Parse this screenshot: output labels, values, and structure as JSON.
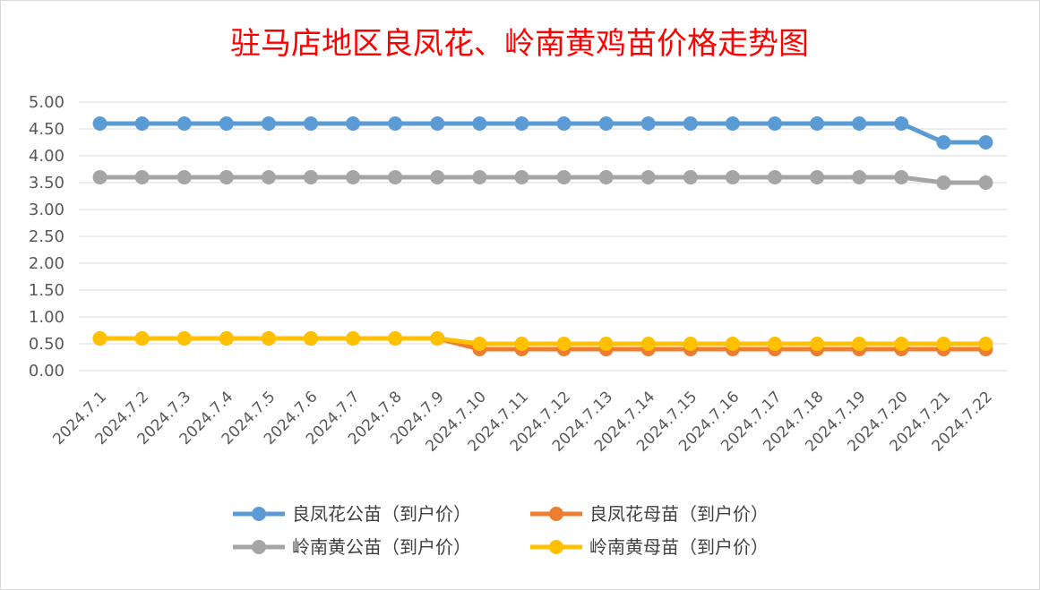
{
  "chart_data": {
    "type": "line",
    "title": "驻马店地区良凤花、岭南黄鸡苗价格走势图",
    "xlabel": "",
    "ylabel": "",
    "ylim": [
      0,
      5
    ],
    "yticks": [
      "0.00",
      "0.50",
      "1.00",
      "1.50",
      "2.00",
      "2.50",
      "3.00",
      "3.50",
      "4.00",
      "4.50",
      "5.00"
    ],
    "grid": true,
    "legend_position": "bottom",
    "categories": [
      "2024.7.1",
      "2024.7.2",
      "2024.7.3",
      "2024.7.4",
      "2024.7.5",
      "2024.7.6",
      "2024.7.7",
      "2024.7.8",
      "2024.7.9",
      "2024.7.10",
      "2024.7.11",
      "2024.7.12",
      "2024.7.13",
      "2024.7.14",
      "2024.7.15",
      "2024.7.16",
      "2024.7.17",
      "2024.7.18",
      "2024.7.19",
      "2024.7.20",
      "2024.7.21",
      "2024.7.22"
    ],
    "series": [
      {
        "name": "良凤花公苗（到户价）",
        "color": "#5b9bd5",
        "values": [
          4.6,
          4.6,
          4.6,
          4.6,
          4.6,
          4.6,
          4.6,
          4.6,
          4.6,
          4.6,
          4.6,
          4.6,
          4.6,
          4.6,
          4.6,
          4.6,
          4.6,
          4.6,
          4.6,
          4.6,
          4.25,
          4.25
        ]
      },
      {
        "name": "良凤花母苗（到户价）",
        "color": "#ed7d31",
        "values": [
          0.6,
          0.6,
          0.6,
          0.6,
          0.6,
          0.6,
          0.6,
          0.6,
          0.6,
          0.4,
          0.4,
          0.4,
          0.4,
          0.4,
          0.4,
          0.4,
          0.4,
          0.4,
          0.4,
          0.4,
          0.4,
          0.4
        ]
      },
      {
        "name": "岭南黄公苗（到户价）",
        "color": "#a5a5a5",
        "values": [
          3.6,
          3.6,
          3.6,
          3.6,
          3.6,
          3.6,
          3.6,
          3.6,
          3.6,
          3.6,
          3.6,
          3.6,
          3.6,
          3.6,
          3.6,
          3.6,
          3.6,
          3.6,
          3.6,
          3.6,
          3.5,
          3.5
        ]
      },
      {
        "name": "岭南黄母苗（到户价）",
        "color": "#ffc000",
        "values": [
          0.6,
          0.6,
          0.6,
          0.6,
          0.6,
          0.6,
          0.6,
          0.6,
          0.6,
          0.5,
          0.5,
          0.5,
          0.5,
          0.5,
          0.5,
          0.5,
          0.5,
          0.5,
          0.5,
          0.5,
          0.5,
          0.5
        ]
      }
    ]
  }
}
